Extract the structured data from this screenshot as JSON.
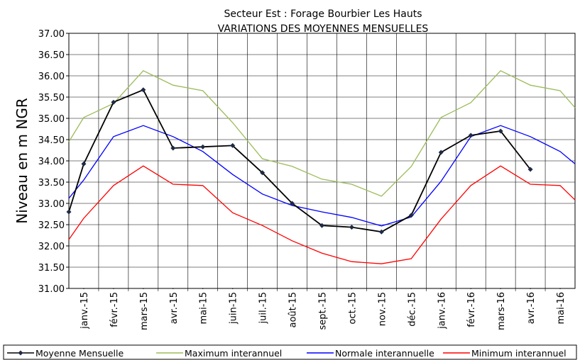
{
  "chart_data": {
    "type": "line",
    "title": "Secteur Est : Forage Bourbier Les Hauts",
    "subtitle": "VARIATIONS DES MOYENNES MENSUELLES",
    "y_label": "Niveau en m NGR",
    "x": [
      0.5,
      1,
      2,
      3,
      4,
      5,
      6,
      7,
      8,
      9,
      10,
      11,
      12,
      13,
      14,
      15,
      16,
      17,
      17.5
    ],
    "xlim": [
      0.5,
      17.5
    ],
    "xticks": [
      {
        "value": 1,
        "label": "janv.-15"
      },
      {
        "value": 2,
        "label": "févr.-15"
      },
      {
        "value": 3,
        "label": "mars-15"
      },
      {
        "value": 4,
        "label": "avr.-15"
      },
      {
        "value": 5,
        "label": "mai-15"
      },
      {
        "value": 6,
        "label": "juin-15"
      },
      {
        "value": 7,
        "label": "juil.-15"
      },
      {
        "value": 8,
        "label": "août-15"
      },
      {
        "value": 9,
        "label": "sept.-15"
      },
      {
        "value": 10,
        "label": "oct.-15"
      },
      {
        "value": 11,
        "label": "nov.-15"
      },
      {
        "value": 12,
        "label": "déc.-15"
      },
      {
        "value": 13,
        "label": "janv.-16"
      },
      {
        "value": 14,
        "label": "févr.-16"
      },
      {
        "value": 15,
        "label": "mars-16"
      },
      {
        "value": 16,
        "label": "avr.-16"
      },
      {
        "value": 17,
        "label": "mai-16"
      }
    ],
    "ylim": [
      31,
      37
    ],
    "yticks": [
      {
        "value": 31,
        "label": "31.00"
      },
      {
        "value": 31.5,
        "label": "31.50"
      },
      {
        "value": 32,
        "label": "32.00"
      },
      {
        "value": 32.5,
        "label": "32.50"
      },
      {
        "value": 33,
        "label": "33.00"
      },
      {
        "value": 33.5,
        "label": "33.50"
      },
      {
        "value": 34,
        "label": "34.00"
      },
      {
        "value": 34.5,
        "label": "34.50"
      },
      {
        "value": 35,
        "label": "35.00"
      },
      {
        "value": 35.5,
        "label": "35.50"
      },
      {
        "value": 36,
        "label": "36.00"
      },
      {
        "value": 36.5,
        "label": "36.50"
      },
      {
        "value": 37,
        "label": "37.00"
      }
    ],
    "grid": true,
    "legend": "bottom",
    "series": [
      {
        "name": "Moyenne  Mensuelle",
        "color": "#000000",
        "marker": "diamond",
        "values": [
          32.8,
          33.93,
          35.38,
          35.67,
          34.3,
          34.33,
          34.36,
          33.72,
          33.0,
          32.48,
          32.44,
          32.33,
          32.72,
          34.2,
          34.6,
          34.7,
          33.8,
          null,
          null
        ]
      },
      {
        "name": "Maximum interannuel",
        "color": "#9bbb59",
        "values": [
          34.45,
          35.02,
          35.35,
          36.12,
          35.78,
          35.65,
          34.9,
          34.05,
          33.87,
          33.57,
          33.45,
          33.17,
          33.87,
          35.02,
          35.37,
          36.12,
          35.78,
          35.65,
          35.25
        ]
      },
      {
        "name": "Normale  interannuelle",
        "color": "#0000ff",
        "values": [
          33.12,
          33.55,
          34.57,
          34.83,
          34.57,
          34.22,
          33.68,
          33.22,
          32.95,
          32.8,
          32.67,
          32.47,
          32.68,
          33.52,
          34.57,
          34.83,
          34.57,
          34.22,
          33.93
        ]
      },
      {
        "name": "Minimum interannuel",
        "color": "#ff0000",
        "values": [
          32.15,
          32.65,
          33.42,
          33.88,
          33.45,
          33.42,
          32.78,
          32.48,
          32.12,
          31.83,
          31.63,
          31.58,
          31.7,
          32.63,
          33.42,
          33.88,
          33.45,
          33.42,
          33.08
        ]
      }
    ]
  }
}
